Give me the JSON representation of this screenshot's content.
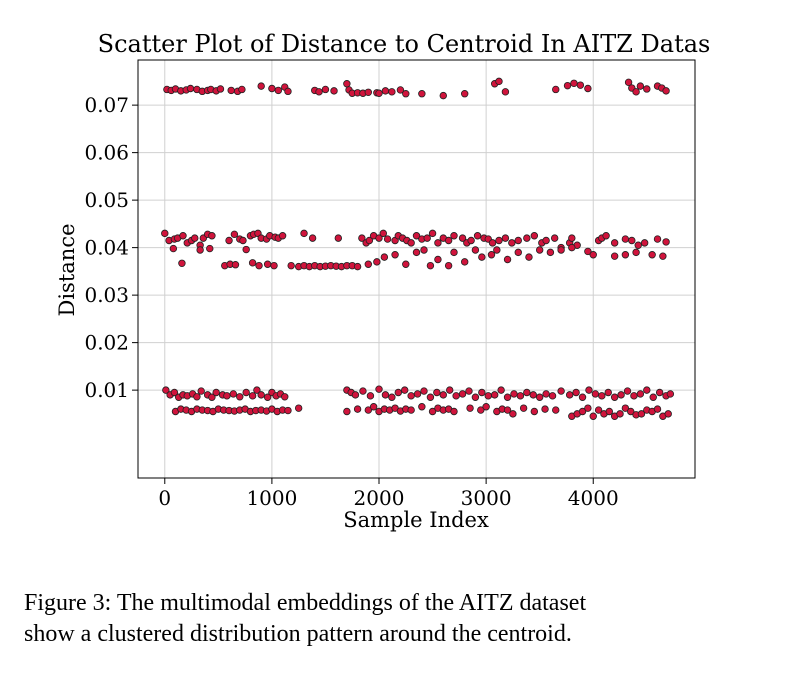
{
  "chart_data": {
    "type": "scatter",
    "title": "Scatter Plot of Distance to Centroid In AITZ Datas",
    "xlabel": "Sample Index",
    "ylabel": "Distance",
    "xlim": [
      -250,
      4950
    ],
    "ylim": [
      -0.0085,
      0.0795
    ],
    "xticks": [
      0,
      1000,
      2000,
      3000,
      4000
    ],
    "xtick_labels": [
      "0",
      "1000",
      "2000",
      "3000",
      "4000"
    ],
    "yticks": [
      0.01,
      0.02,
      0.03,
      0.04,
      0.05,
      0.06,
      0.07
    ],
    "ytick_labels": [
      "0.01",
      "0.02",
      "0.03",
      "0.04",
      "0.05",
      "0.06",
      "0.07"
    ],
    "grid": true,
    "marker_color": "#d0143c",
    "marker_edge_color": "#222222",
    "series": [
      {
        "x": [
          20,
          60,
          100,
          150,
          200,
          240,
          300,
          350,
          400,
          430,
          480,
          520,
          620,
          680,
          720,
          900,
          1000,
          1060,
          1120,
          1150,
          1400,
          1440,
          1500,
          1580,
          1700,
          1720,
          1750,
          1800,
          1850,
          1900,
          1980,
          2000,
          2060,
          2120,
          2200,
          2250,
          2400,
          2600,
          2800,
          3080,
          3120,
          3180,
          3650,
          3760,
          3820,
          3880,
          3950,
          4330,
          4360,
          4400,
          4440,
          4500,
          4600,
          4640,
          4680
        ],
        "y": [
          0.0733,
          0.0731,
          0.0734,
          0.073,
          0.0732,
          0.0735,
          0.0733,
          0.0729,
          0.0731,
          0.0733,
          0.073,
          0.0734,
          0.0731,
          0.0729,
          0.0733,
          0.074,
          0.0735,
          0.0731,
          0.0738,
          0.0729,
          0.0731,
          0.0728,
          0.0733,
          0.073,
          0.0745,
          0.0732,
          0.0725,
          0.0726,
          0.0725,
          0.0727,
          0.0726,
          0.0725,
          0.073,
          0.0728,
          0.0732,
          0.0724,
          0.0724,
          0.072,
          0.0724,
          0.0745,
          0.075,
          0.0728,
          0.0733,
          0.0741,
          0.0746,
          0.0742,
          0.0735,
          0.0748,
          0.0736,
          0.0728,
          0.074,
          0.0734,
          0.074,
          0.0736,
          0.073
        ]
      },
      {
        "x": [
          0,
          40,
          90,
          120,
          170,
          210,
          250,
          280,
          330,
          360,
          400,
          440,
          600,
          650,
          700,
          730,
          800,
          830,
          870,
          900,
          950,
          980,
          1030,
          1060,
          1100,
          1300,
          1380,
          1620,
          1840,
          1880,
          1910,
          1950,
          2000,
          2040,
          2080,
          2150,
          2180,
          2220,
          2260,
          2300,
          2350,
          2400,
          2450,
          2500,
          2550,
          2600,
          2650,
          2700,
          2780,
          2820,
          2860,
          2920,
          2980,
          3020,
          3060,
          3120,
          3180,
          3240,
          3300,
          3380,
          3450,
          3520,
          3560,
          3640,
          3700,
          3780,
          3800,
          3850,
          4050,
          4080,
          4120,
          4200,
          4300,
          4360,
          4420,
          4480,
          4600,
          4680
        ],
        "y": [
          0.043,
          0.0415,
          0.0418,
          0.042,
          0.0425,
          0.041,
          0.0415,
          0.042,
          0.0405,
          0.042,
          0.0428,
          0.0425,
          0.0415,
          0.0428,
          0.0418,
          0.0415,
          0.0425,
          0.0428,
          0.043,
          0.042,
          0.0418,
          0.0425,
          0.0422,
          0.042,
          0.0425,
          0.043,
          0.042,
          0.042,
          0.042,
          0.041,
          0.0415,
          0.0425,
          0.042,
          0.043,
          0.0418,
          0.0415,
          0.0425,
          0.042,
          0.0415,
          0.041,
          0.0425,
          0.0418,
          0.042,
          0.043,
          0.041,
          0.042,
          0.0415,
          0.0425,
          0.042,
          0.041,
          0.0415,
          0.0425,
          0.042,
          0.0418,
          0.041,
          0.0415,
          0.042,
          0.041,
          0.0415,
          0.042,
          0.0425,
          0.041,
          0.0415,
          0.042,
          0.04,
          0.041,
          0.042,
          0.0405,
          0.0415,
          0.042,
          0.0425,
          0.041,
          0.0418,
          0.0415,
          0.0405,
          0.041,
          0.0418,
          0.0412
        ]
      },
      {
        "x": [
          80,
          160,
          330,
          420,
          560,
          610,
          660,
          760,
          820,
          880,
          960,
          1020,
          1180,
          1250,
          1300,
          1350,
          1400,
          1450,
          1500,
          1550,
          1600,
          1650,
          1700,
          1750,
          1800,
          1900,
          1980,
          2050,
          2150,
          2250,
          2350,
          2420,
          2480,
          2550,
          2650,
          2700,
          2800,
          2900,
          2960,
          3050,
          3100,
          3200,
          3300,
          3400,
          3500,
          3600,
          3700,
          3800,
          3950,
          4000,
          4200,
          4300,
          4400,
          4550,
          4650
        ],
        "y": [
          0.0398,
          0.0367,
          0.0395,
          0.0398,
          0.0362,
          0.0365,
          0.0364,
          0.0396,
          0.0368,
          0.0362,
          0.0365,
          0.0362,
          0.0362,
          0.036,
          0.0362,
          0.036,
          0.0362,
          0.036,
          0.0361,
          0.0362,
          0.0361,
          0.036,
          0.0362,
          0.0362,
          0.036,
          0.0365,
          0.037,
          0.038,
          0.0385,
          0.0365,
          0.039,
          0.0395,
          0.0362,
          0.0375,
          0.0362,
          0.039,
          0.037,
          0.0395,
          0.038,
          0.0385,
          0.0395,
          0.0375,
          0.039,
          0.038,
          0.0395,
          0.039,
          0.0395,
          0.04,
          0.0392,
          0.0385,
          0.0382,
          0.0385,
          0.039,
          0.0385,
          0.0382
        ]
      },
      {
        "x": [
          10,
          50,
          90,
          130,
          170,
          210,
          260,
          300,
          340,
          400,
          440,
          480,
          540,
          580,
          640,
          700,
          760,
          820,
          860,
          900,
          960,
          1000,
          1040,
          1080,
          1120,
          1700,
          1740,
          1780,
          1850,
          1920,
          2000,
          2060,
          2120,
          2180,
          2240,
          2300,
          2360,
          2420,
          2480,
          2540,
          2600,
          2660,
          2720,
          2780,
          2840,
          2900,
          2960,
          3020,
          3080,
          3140,
          3200,
          3260,
          3320,
          3380,
          3440,
          3500,
          3560,
          3620,
          3700,
          3780,
          3840,
          3900,
          3960,
          4020,
          4080,
          4140,
          4200,
          4260,
          4320,
          4380,
          4440,
          4500,
          4560,
          4620,
          4680,
          4720
        ],
        "y": [
          0.01,
          0.009,
          0.0095,
          0.0085,
          0.009,
          0.0088,
          0.0092,
          0.0086,
          0.0098,
          0.009,
          0.0085,
          0.0095,
          0.009,
          0.0088,
          0.0092,
          0.0086,
          0.0095,
          0.0088,
          0.01,
          0.009,
          0.0085,
          0.0095,
          0.0088,
          0.0092,
          0.0086,
          0.01,
          0.0095,
          0.009,
          0.0098,
          0.0088,
          0.0102,
          0.009,
          0.0085,
          0.0095,
          0.01,
          0.0088,
          0.0092,
          0.0098,
          0.0085,
          0.0095,
          0.009,
          0.01,
          0.0088,
          0.0092,
          0.0098,
          0.0085,
          0.0095,
          0.0088,
          0.009,
          0.01,
          0.0085,
          0.0092,
          0.0088,
          0.0095,
          0.009,
          0.0085,
          0.0092,
          0.0088,
          0.0098,
          0.009,
          0.0095,
          0.0085,
          0.01,
          0.0092,
          0.0088,
          0.0095,
          0.0085,
          0.009,
          0.0098,
          0.0088,
          0.0092,
          0.01,
          0.0085,
          0.0095,
          0.0088,
          0.0092
        ]
      },
      {
        "x": [
          100,
          150,
          200,
          250,
          300,
          350,
          400,
          450,
          500,
          550,
          600,
          650,
          700,
          750,
          800,
          850,
          900,
          950,
          1000,
          1050,
          1100,
          1150,
          1250,
          1700,
          1800,
          1900,
          1950,
          2000,
          2050,
          2100,
          2150,
          2200,
          2250,
          2300,
          2400,
          2500,
          2550,
          2600,
          2650,
          2700,
          2850,
          2950,
          3000,
          3100,
          3150,
          3200,
          3250,
          3350,
          3450,
          3550,
          3650,
          3800,
          3850,
          3900,
          3950,
          4000,
          4050,
          4100,
          4150,
          4200,
          4250,
          4300,
          4350,
          4400,
          4450,
          4500,
          4550,
          4600,
          4650,
          4700
        ],
        "y": [
          0.0055,
          0.006,
          0.0058,
          0.0055,
          0.006,
          0.0058,
          0.0057,
          0.0055,
          0.006,
          0.0058,
          0.0057,
          0.0056,
          0.0058,
          0.006,
          0.0055,
          0.0057,
          0.0058,
          0.0056,
          0.006,
          0.0055,
          0.0058,
          0.0057,
          0.0062,
          0.0055,
          0.006,
          0.0058,
          0.0065,
          0.0055,
          0.006,
          0.0058,
          0.0062,
          0.0056,
          0.006,
          0.0058,
          0.0065,
          0.0055,
          0.0062,
          0.0058,
          0.006,
          0.0055,
          0.0062,
          0.0058,
          0.0065,
          0.0055,
          0.006,
          0.0058,
          0.005,
          0.0062,
          0.0055,
          0.006,
          0.0058,
          0.0045,
          0.005,
          0.0055,
          0.0062,
          0.0045,
          0.0058,
          0.005,
          0.0055,
          0.0045,
          0.005,
          0.0062,
          0.0055,
          0.0048,
          0.005,
          0.0058,
          0.0055,
          0.006,
          0.0045,
          0.005
        ]
      }
    ]
  },
  "caption": {
    "line1": "Figure 3: The multimodal embeddings of the AITZ dataset",
    "line2": "show a clustered distribution pattern around the centroid."
  }
}
